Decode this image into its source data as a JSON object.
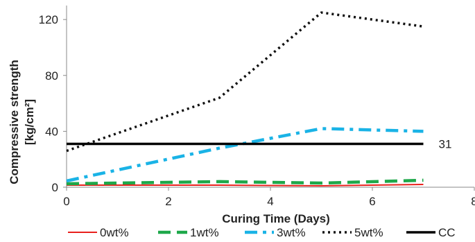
{
  "chart_data": {
    "type": "line",
    "xlabel": "Curing Time (Days)",
    "ylabel_line1": "Compressive strength",
    "ylabel_line2": "[kg/cm²]",
    "xlim": [
      0,
      8
    ],
    "ylim": [
      0,
      130
    ],
    "xticks": [
      "0",
      "2",
      "4",
      "6",
      "8"
    ],
    "yticks": [
      "0",
      "40",
      "80",
      "120"
    ],
    "grid": false,
    "legend_position": "bottom",
    "series": [
      {
        "name": "0wt%",
        "color": "#e8201c",
        "dash": "solid",
        "x": [
          0,
          3,
          5,
          7
        ],
        "y": [
          1.5,
          1.5,
          1.0,
          2.0
        ]
      },
      {
        "name": "1wt%",
        "color": "#1ea84a",
        "dash": "dash",
        "x": [
          0,
          3,
          5,
          7
        ],
        "y": [
          2.5,
          4.0,
          3.0,
          5.0
        ]
      },
      {
        "name": "3wt%",
        "color": "#1ab3e6",
        "dash": "dashdot",
        "x": [
          0,
          3,
          5,
          7
        ],
        "y": [
          4.5,
          28.0,
          42.0,
          40.0
        ]
      },
      {
        "name": "5wt%",
        "color": "#111111",
        "dash": "dot",
        "x": [
          0,
          3,
          5,
          7
        ],
        "y": [
          26.0,
          64.0,
          125.0,
          115.0
        ]
      },
      {
        "name": "CC",
        "color": "#000000",
        "dash": "solid-thick",
        "x": [
          0,
          7
        ],
        "y": [
          31,
          31
        ]
      }
    ],
    "annotations": [
      {
        "text": "31",
        "x": 7,
        "y": 31
      }
    ]
  }
}
